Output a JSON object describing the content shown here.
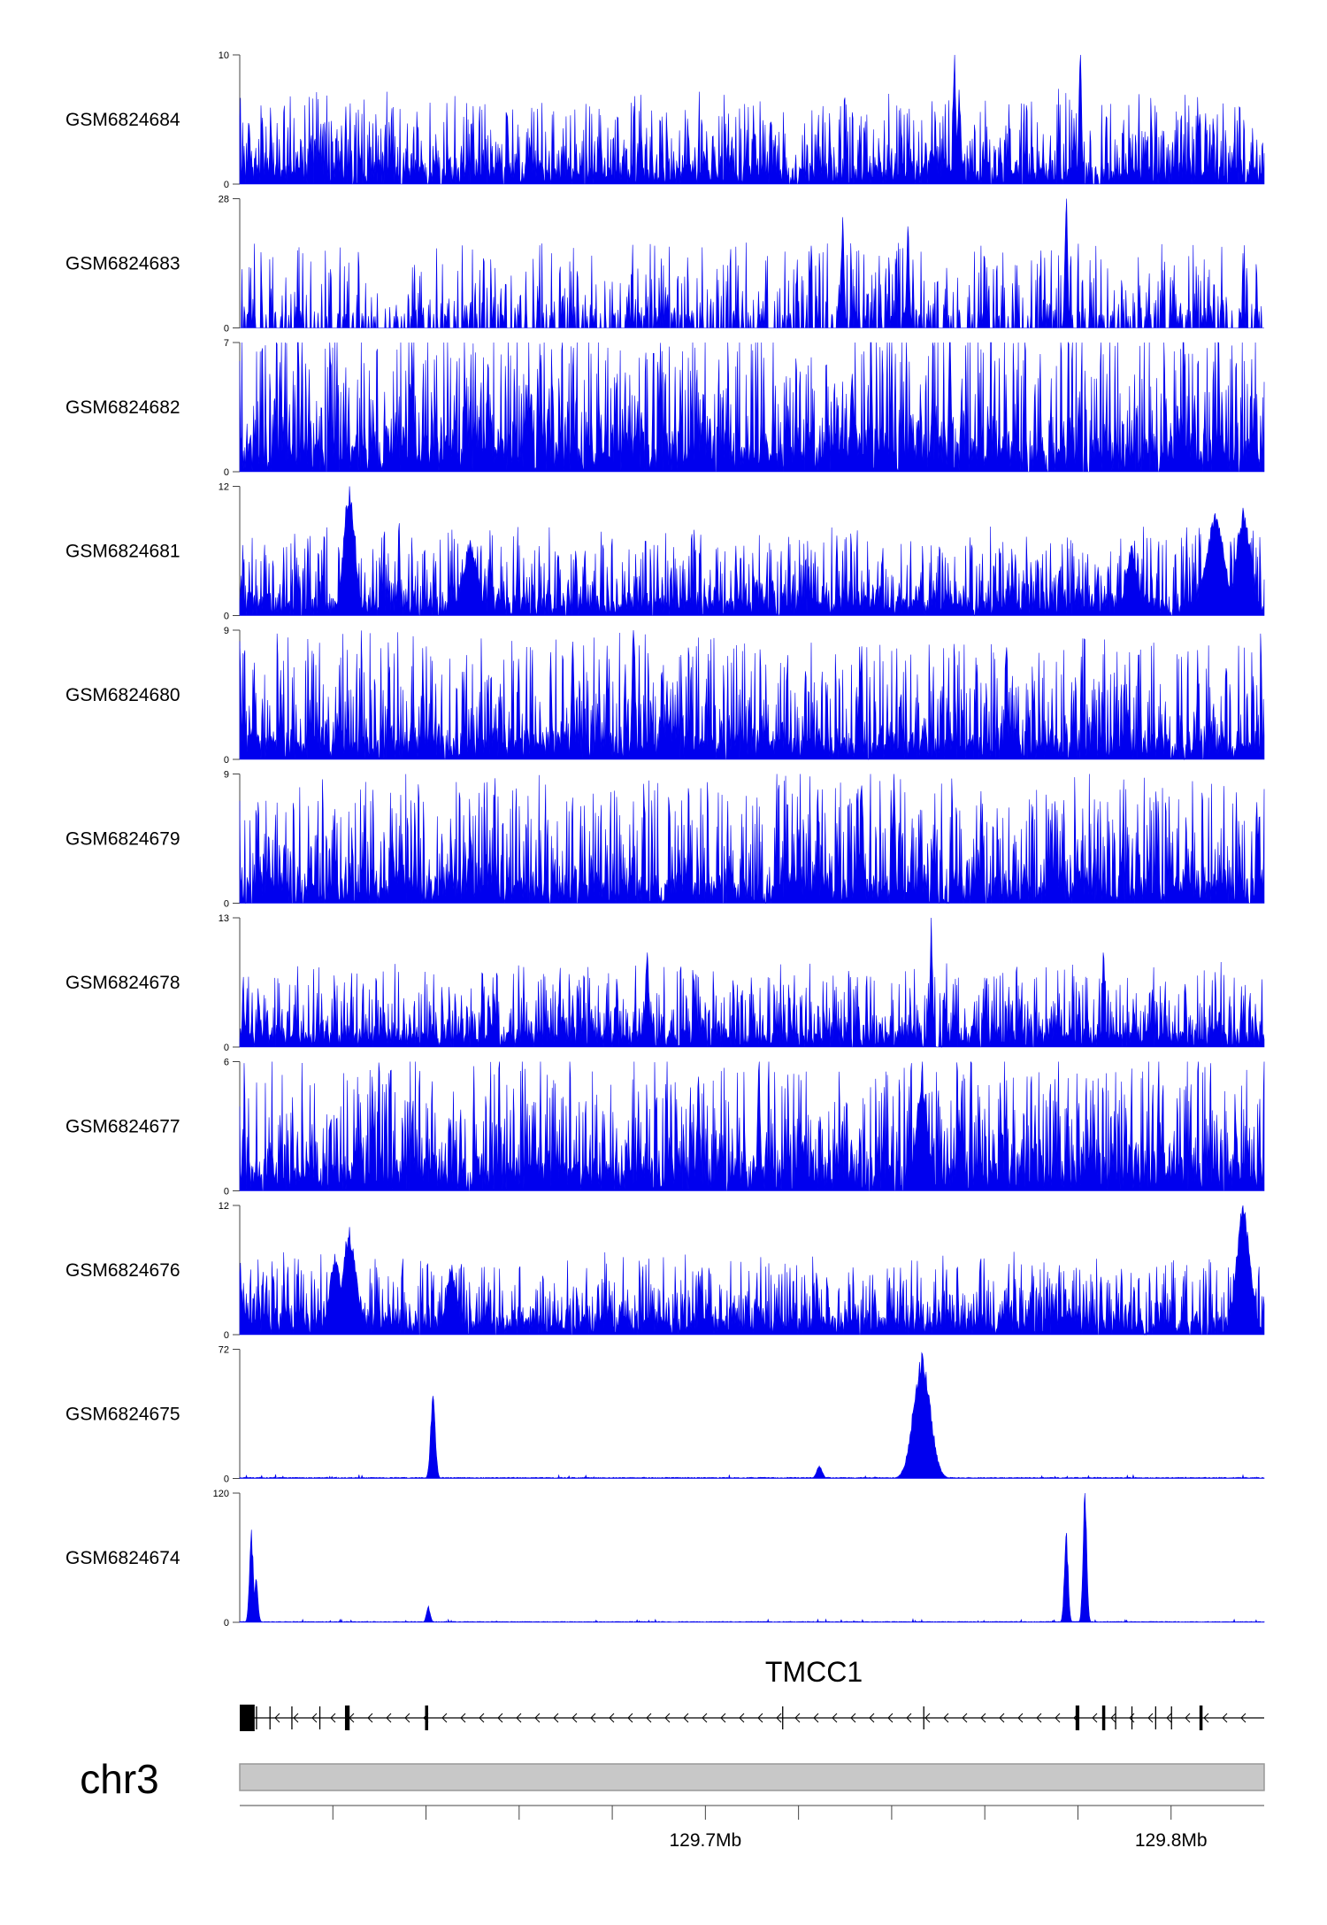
{
  "chart_data": {
    "type": "area",
    "title": "",
    "xlabel": "",
    "chromosome": "chr3",
    "x_unit": "Mb",
    "x_range": [
      129.6,
      129.82
    ],
    "x_tick_labels": [
      "129.7Mb",
      "129.8Mb"
    ],
    "series_color": "#0000ee",
    "tracks": [
      {
        "name": "GSM6824684",
        "ylim": [
          0,
          10
        ],
        "ymax_label": "10",
        "ymin_label": "0",
        "style": "noisy",
        "baseline": 1.4,
        "spread": 2.8,
        "peaks": [
          {
            "x": 129.7535,
            "y": 10,
            "w": 0.0003
          },
          {
            "x": 129.7805,
            "y": 10,
            "w": 0.0003
          },
          {
            "x": 129.7545,
            "y": 7.3,
            "w": 0.0004
          }
        ]
      },
      {
        "name": "GSM6824683",
        "ylim": [
          0,
          28
        ],
        "ymax_label": "28",
        "ymin_label": "0",
        "style": "sparse",
        "baseline": 2.5,
        "spread": 5,
        "peaks": [
          {
            "x": 129.7775,
            "y": 28,
            "w": 0.0003
          },
          {
            "x": 129.7295,
            "y": 24,
            "w": 0.0003
          },
          {
            "x": 129.7435,
            "y": 22,
            "w": 0.0003
          }
        ]
      },
      {
        "name": "GSM6824682",
        "ylim": [
          0,
          7
        ],
        "ymax_label": "7",
        "ymin_label": "0",
        "style": "noisy",
        "baseline": 1.6,
        "spread": 3.3,
        "peaks": [
          {
            "x": 129.7525,
            "y": 7,
            "w": 0.0003
          },
          {
            "x": 129.7315,
            "y": 5.3,
            "w": 0.0004
          }
        ]
      },
      {
        "name": "GSM6824681",
        "ylim": [
          0,
          12
        ],
        "ymax_label": "12",
        "ymin_label": "0",
        "style": "noisy",
        "baseline": 1.6,
        "spread": 3.2,
        "peaks": [
          {
            "x": 129.6235,
            "y": 12,
            "w": 0.0012
          },
          {
            "x": 129.6495,
            "y": 7,
            "w": 0.0015
          },
          {
            "x": 129.8095,
            "y": 9.5,
            "w": 0.002
          },
          {
            "x": 129.8155,
            "y": 10,
            "w": 0.0015
          },
          {
            "x": 129.7915,
            "y": 6.5,
            "w": 0.0012
          }
        ]
      },
      {
        "name": "GSM6824680",
        "ylim": [
          0,
          9
        ],
        "ymax_label": "9",
        "ymin_label": "0",
        "style": "noisy",
        "baseline": 1.5,
        "spread": 3.5,
        "peaks": [
          {
            "x": 129.6845,
            "y": 9,
            "w": 0.0003
          },
          {
            "x": 129.6715,
            "y": 8.2,
            "w": 0.0003
          }
        ]
      },
      {
        "name": "GSM6824679",
        "ylim": [
          0,
          9
        ],
        "ymax_label": "9",
        "ymin_label": "0",
        "style": "noisy",
        "baseline": 1.5,
        "spread": 3.6,
        "peaks": [
          {
            "x": 129.7405,
            "y": 9,
            "w": 0.0003
          },
          {
            "x": 129.7335,
            "y": 8.2,
            "w": 0.0003
          }
        ]
      },
      {
        "name": "GSM6824678",
        "ylim": [
          0,
          13
        ],
        "ymax_label": "13",
        "ymin_label": "0",
        "style": "noisy",
        "baseline": 1.5,
        "spread": 3.3,
        "peaks": [
          {
            "x": 129.7485,
            "y": 13,
            "w": 0.0003
          },
          {
            "x": 129.6875,
            "y": 9.5,
            "w": 0.0004
          },
          {
            "x": 129.7855,
            "y": 9.5,
            "w": 0.0003
          }
        ]
      },
      {
        "name": "GSM6824677",
        "ylim": [
          0,
          6
        ],
        "ymax_label": "6",
        "ymin_label": "0",
        "style": "noisy",
        "baseline": 1.3,
        "spread": 2.5,
        "peaks": [
          {
            "x": 129.7115,
            "y": 6,
            "w": 0.0003
          },
          {
            "x": 129.7465,
            "y": 5.5,
            "w": 0.0012
          },
          {
            "x": 129.6985,
            "y": 5.3,
            "w": 0.0003
          },
          {
            "x": 129.6285,
            "y": 5.3,
            "w": 0.0003
          }
        ]
      },
      {
        "name": "GSM6824676",
        "ylim": [
          0,
          12
        ],
        "ymax_label": "12",
        "ymin_label": "0",
        "style": "noisy",
        "baseline": 1.6,
        "spread": 2.8,
        "peaks": [
          {
            "x": 129.8155,
            "y": 12,
            "w": 0.0015
          },
          {
            "x": 129.6235,
            "y": 10,
            "w": 0.0015
          },
          {
            "x": 129.6205,
            "y": 7.5,
            "w": 0.0012
          },
          {
            "x": 129.6455,
            "y": 6,
            "w": 0.0012
          }
        ]
      },
      {
        "name": "GSM6824675",
        "ylim": [
          0,
          72
        ],
        "ymax_label": "72",
        "ymin_label": "0",
        "style": "flat",
        "baseline": 0.5,
        "spread": 1.8,
        "peaks": [
          {
            "x": 129.6415,
            "y": 46,
            "w": 0.0005
          },
          {
            "x": 129.7465,
            "y": 70,
            "w": 0.0018
          },
          {
            "x": 129.7245,
            "y": 7,
            "w": 0.0006
          }
        ]
      },
      {
        "name": "GSM6824674",
        "ylim": [
          0,
          120
        ],
        "ymax_label": "120",
        "ymin_label": "0",
        "style": "flat",
        "baseline": 0.6,
        "spread": 2.5,
        "peaks": [
          {
            "x": 129.6025,
            "y": 86,
            "w": 0.0004
          },
          {
            "x": 129.6035,
            "y": 40,
            "w": 0.0004
          },
          {
            "x": 129.7775,
            "y": 83,
            "w": 0.0004
          },
          {
            "x": 129.7815,
            "y": 120,
            "w": 0.0004
          },
          {
            "x": 129.6405,
            "y": 15,
            "w": 0.0004
          }
        ]
      }
    ],
    "gene": {
      "name": "TMCC1",
      "strand": "-",
      "start": 129.6,
      "end": 129.82,
      "exons": [
        {
          "start": 129.6,
          "end": 129.6032
        },
        {
          "start": 129.6226,
          "end": 129.6236
        },
        {
          "start": 129.6398,
          "end": 129.6402
        },
        {
          "start": 129.7795,
          "end": 129.7803
        },
        {
          "start": 129.7852,
          "end": 129.7856
        },
        {
          "start": 129.8061,
          "end": 129.8065
        }
      ],
      "minor_exons": [
        129.6036,
        129.6065,
        129.6112,
        129.6172,
        129.7166,
        129.7469,
        129.7881,
        129.7916,
        129.7967,
        129.8001
      ]
    }
  }
}
